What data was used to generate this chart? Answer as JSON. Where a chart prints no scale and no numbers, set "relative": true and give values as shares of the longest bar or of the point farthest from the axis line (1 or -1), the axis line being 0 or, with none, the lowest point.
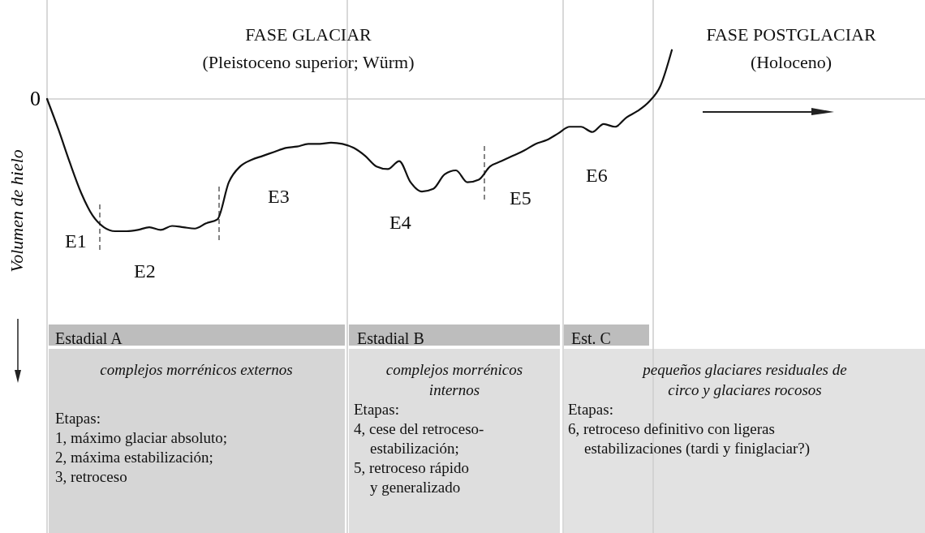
{
  "chart_data": {
    "type": "line",
    "relative": true,
    "ylabel": "Volumen de hielo",
    "categories": [
      null,
      null,
      null,
      null,
      null,
      null,
      null,
      null,
      null,
      null,
      null,
      null,
      null,
      null,
      null,
      null,
      null,
      null,
      null,
      null,
      null,
      null,
      null,
      null,
      null,
      null,
      null,
      null,
      null,
      null,
      null,
      null,
      null,
      null,
      null,
      null,
      null,
      null,
      null,
      null,
      null,
      null,
      null,
      null,
      null,
      null,
      null,
      null,
      null,
      null,
      null,
      null,
      null,
      null,
      null,
      null
    ],
    "series": [
      {
        "color": "#111111",
        "values": [
          0,
          -0.23,
          -0.48,
          -0.71,
          -0.88,
          -0.97,
          -1,
          -1,
          -0.99,
          -0.97,
          -0.99,
          -0.96,
          -0.97,
          -0.98,
          -0.94,
          -0.91,
          -0.63,
          -0.51,
          -0.46,
          -0.43,
          -0.4,
          -0.37,
          -0.36,
          -0.34,
          -0.34,
          -0.33,
          -0.34,
          -0.37,
          -0.43,
          -0.51,
          -0.53,
          -0.47,
          -0.63,
          -0.7,
          -0.68,
          -0.57,
          -0.54,
          -0.63,
          -0.61,
          -0.51,
          -0.47,
          -0.43,
          -0.39,
          -0.34,
          -0.31,
          -0.26,
          -0.21,
          -0.21,
          -0.25,
          -0.19,
          -0.21,
          -0.14,
          -0.09,
          -0.02,
          0.1,
          0.37
        ]
      }
    ],
    "ref_lines": [
      {
        "axis": "y",
        "value": 0,
        "label": "0",
        "color": "#cccccc"
      }
    ],
    "annotations": [
      "FASE GLACIAR",
      "(Pleistoceno superior; Würm)",
      "FASE POSTGLACIAR",
      "(Holoceno)",
      "E1",
      "E2",
      "E3",
      "E4",
      "E5",
      "E6",
      "Estadial A",
      "Estadial B",
      "Est. C",
      "complejos morrénicos externos",
      "complejos morrénicos",
      "internos",
      "pequeños glaciares residuales de",
      "circo y glaciares rocosos",
      "Etapas:",
      "1,  máximo glaciar absoluto;",
      "2, máxima estabilización;",
      "3, retroceso",
      "Etapas:",
      "4, cese del retroceso-",
      "estabilización;",
      "5, retroceso rápido",
      "y generalizado",
      "Etapas:",
      "6, retroceso definitivo con ligeras",
      "estabilizaciones (tardi y finiglaciar?)"
    ]
  }
}
